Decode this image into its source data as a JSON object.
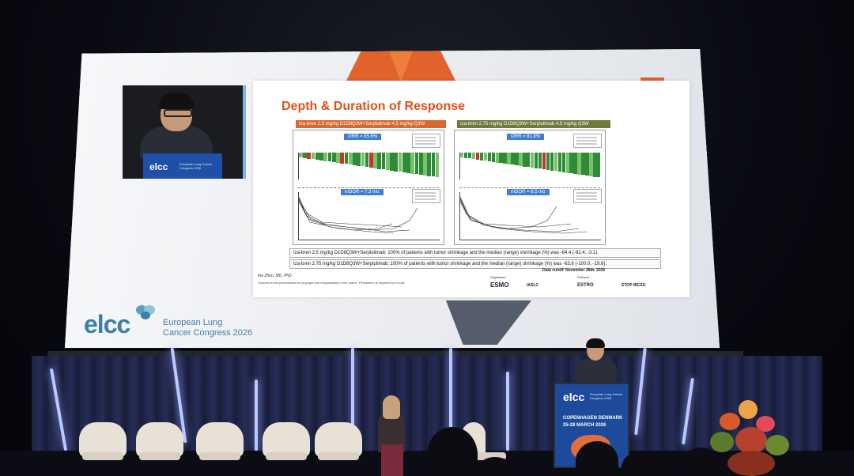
{
  "scene": {
    "background_color": "#07080e",
    "screen_color": "#eef0f3",
    "accent_orange": "#d9531e",
    "accent_blue": "#3c7ea8"
  },
  "camera_inset": {
    "logo_text": "elcc",
    "logo_subtitle": "European Lung Cancer Congress 2026"
  },
  "slide": {
    "title": "Depth & Duration of Response",
    "left_panel_header": "Iza-bren 2.5 mg/kg D1D8Q3W+Serplulimab 4.5 mg/kg Q3W",
    "right_panel_header": "Iza-bren 2.75 mg/kg D1D8Q3W+Serplulimab 4.5 mg/kg Q3W",
    "left_orr": "ORR = 85.6%",
    "right_orr": "ORR = 91.9%",
    "left_mdor": "mDOR = 7.3 mo",
    "right_mdor": "mDOR = 8.5 mo",
    "footnote_1": "Iza-bren 2.5 mg/kg D1D8Q3W+Serplulimab: 100% of patients with tumor shrinkage and the median (range) shrinkage (%) was -64.4 (-92.4, -3.1).",
    "footnote_2": "Iza-bren 2.75 mg/kg D1D8Q3W+Serplulimab: 100% of patients with tumor shrinkage and the median (range) shrinkage (%) was -63.6 (-100.0, -19.6).",
    "data_cutoff": "Data cutoff: November 28th, 2025",
    "author": "Fei Zhou, MD, PhD",
    "copyright": "Content of this presentation is copyright and responsibility of the author. Permission is required for re-use.",
    "organisers_label": "Organisers",
    "partners_label": "Partners",
    "org_esmo": "ESMO",
    "org_iaslc": "IASLC",
    "org_estro": "ESTRO",
    "org_etop": "ETOP IBCSG"
  },
  "screen_branding": {
    "logo": "elcc",
    "line1": "European Lung",
    "line2": "Cancer Congress 2026"
  },
  "podium": {
    "logo": "elcc",
    "subtitle": "European Lung Cancer Congress 2026",
    "city": "COPENHAGEN DENMARK",
    "dates": "25-28 MARCH 2026"
  }
}
